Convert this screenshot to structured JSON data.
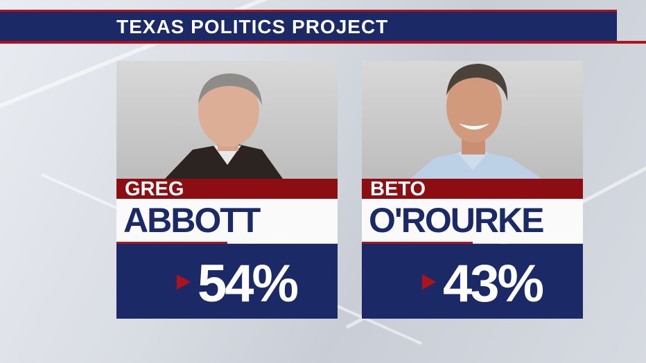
{
  "header": {
    "title": "TEXAS POLITICS PROJECT"
  },
  "candidates": [
    {
      "first": "GREG",
      "last": "ABBOTT",
      "percent": "54%"
    },
    {
      "first": "BETO",
      "last": "O'ROURKE",
      "percent": "43%"
    }
  ],
  "colors": {
    "navy": "#1b2a66",
    "red": "#8c0d12",
    "accent_red": "#b0121b",
    "white": "#fafafa"
  }
}
